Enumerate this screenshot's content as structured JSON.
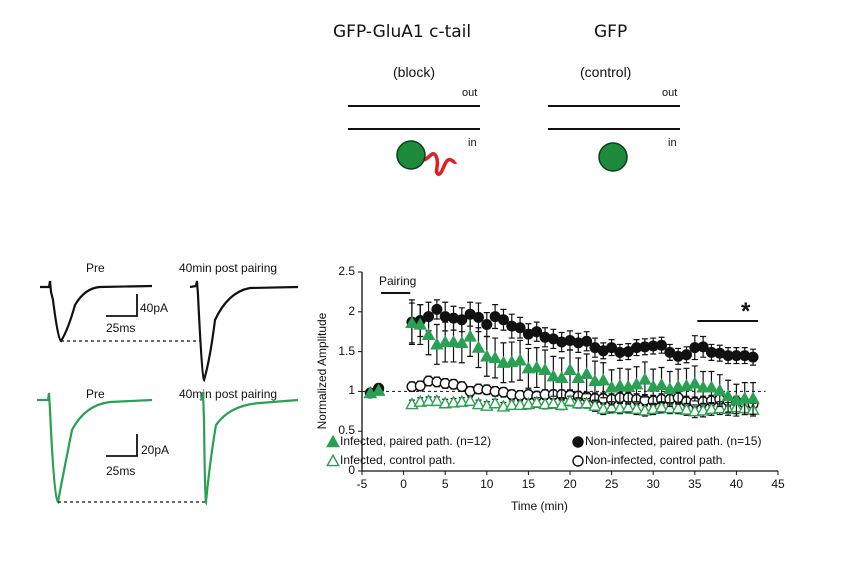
{
  "diagram": {
    "left": {
      "title": "GFP-GluA1 c-tail",
      "subtitle": "(block)",
      "out_label": "out",
      "in_label": "in"
    },
    "right": {
      "title": "GFP",
      "subtitle": "(control)",
      "out_label": "out",
      "in_label": "in"
    },
    "colors": {
      "gfp": "#1e8a3c",
      "ctail": "#e02020"
    }
  },
  "traces": {
    "black": {
      "pre_label": "Pre",
      "post_label": "40min post pairing",
      "scale_y": "40pA",
      "scale_x": "25ms",
      "color": "#111111"
    },
    "green": {
      "pre_label": "Pre",
      "post_label": "40min post pairing",
      "scale_y": "20pA",
      "scale_x": "25ms",
      "color": "#2aa052"
    }
  },
  "chart_data": {
    "type": "scatter",
    "xlabel": "Time (min)",
    "ylabel": "Normalized Amplitude",
    "xlim": [
      -5,
      45
    ],
    "ylim": [
      0,
      2.5
    ],
    "xticks": [
      "-5",
      "0",
      "5",
      "10",
      "15",
      "20",
      "25",
      "30",
      "35",
      "40",
      "45"
    ],
    "yticks": [
      "0",
      "0.5",
      "1",
      "1.5",
      "2",
      "2.5"
    ],
    "reference_line": 1,
    "annotations": {
      "pairing": "Pairing",
      "significance": "*"
    },
    "legend_placement": "bottom-left",
    "x": [
      -4,
      -3,
      1,
      2,
      3,
      4,
      5,
      6,
      7,
      8,
      9,
      10,
      11,
      12,
      13,
      14,
      15,
      16,
      17,
      18,
      19,
      20,
      21,
      22,
      23,
      24,
      25,
      26,
      27,
      28,
      29,
      30,
      31,
      32,
      33,
      34,
      35,
      36,
      37,
      38,
      39,
      40,
      41,
      42
    ],
    "series": [
      {
        "name": "Non-infected, control path.",
        "marker": "open-circle",
        "color": "#111111",
        "values": [
          0.98,
          1.03,
          1.06,
          1.07,
          1.13,
          1.12,
          1.1,
          1.09,
          1.06,
          1.0,
          1.03,
          1.02,
          1.0,
          0.99,
          0.96,
          0.95,
          0.96,
          0.94,
          0.96,
          0.96,
          0.96,
          0.95,
          0.94,
          0.93,
          0.91,
          0.91,
          0.9,
          0.92,
          0.92,
          0.9,
          0.89,
          0.88,
          0.9,
          0.9,
          0.92,
          0.87,
          0.86,
          0.87,
          0.88,
          0.9,
          0.88,
          0.87,
          0.85,
          0.84
        ],
        "errors": [
          0.03,
          0.03,
          0.06,
          0.06,
          0.06,
          0.06,
          0.06,
          0.06,
          0.06,
          0.06,
          0.06,
          0.06,
          0.06,
          0.06,
          0.06,
          0.06,
          0.06,
          0.06,
          0.06,
          0.06,
          0.06,
          0.06,
          0.06,
          0.06,
          0.07,
          0.07,
          0.07,
          0.07,
          0.07,
          0.07,
          0.07,
          0.07,
          0.07,
          0.07,
          0.07,
          0.07,
          0.07,
          0.07,
          0.07,
          0.07,
          0.07,
          0.07,
          0.07,
          0.07
        ]
      },
      {
        "name": "Infected, control path.",
        "marker": "open-triangle",
        "color": "#2aa052",
        "values": [
          0.98,
          1.01,
          0.84,
          0.87,
          0.88,
          0.88,
          0.85,
          0.86,
          0.87,
          0.88,
          0.84,
          0.82,
          0.85,
          0.81,
          0.83,
          0.83,
          0.84,
          0.86,
          0.84,
          0.85,
          0.83,
          0.88,
          0.85,
          0.85,
          0.82,
          0.78,
          0.8,
          0.79,
          0.8,
          0.78,
          0.76,
          0.78,
          0.8,
          0.79,
          0.79,
          0.77,
          0.75,
          0.76,
          0.78,
          0.79,
          0.78,
          0.8,
          0.79,
          0.77
        ],
        "errors": [
          0.03,
          0.03,
          0.05,
          0.05,
          0.05,
          0.05,
          0.05,
          0.05,
          0.05,
          0.05,
          0.05,
          0.05,
          0.05,
          0.05,
          0.05,
          0.05,
          0.06,
          0.06,
          0.06,
          0.06,
          0.06,
          0.06,
          0.06,
          0.06,
          0.07,
          0.07,
          0.07,
          0.07,
          0.07,
          0.07,
          0.07,
          0.07,
          0.07,
          0.07,
          0.07,
          0.07,
          0.08,
          0.08,
          0.08,
          0.08,
          0.08,
          0.08,
          0.08,
          0.08
        ]
      },
      {
        "name": "Non-infected, paired path. (n=15)",
        "marker": "filled-circle",
        "color": "#111111",
        "values": [
          0.98,
          1.04,
          1.87,
          1.89,
          1.94,
          2.03,
          1.94,
          1.92,
          1.9,
          1.97,
          1.93,
          1.84,
          1.94,
          1.9,
          1.82,
          1.8,
          1.72,
          1.75,
          1.68,
          1.66,
          1.62,
          1.64,
          1.61,
          1.63,
          1.55,
          1.51,
          1.55,
          1.49,
          1.5,
          1.55,
          1.56,
          1.57,
          1.58,
          1.49,
          1.44,
          1.46,
          1.55,
          1.56,
          1.49,
          1.48,
          1.45,
          1.45,
          1.45,
          1.43
        ],
        "errors": [
          0.03,
          0.03,
          0.28,
          0.2,
          0.18,
          0.12,
          0.18,
          0.15,
          0.15,
          0.15,
          0.18,
          0.15,
          0.15,
          0.13,
          0.15,
          0.13,
          0.13,
          0.12,
          0.12,
          0.12,
          0.12,
          0.12,
          0.12,
          0.12,
          0.12,
          0.1,
          0.1,
          0.1,
          0.1,
          0.1,
          0.1,
          0.1,
          0.1,
          0.1,
          0.1,
          0.1,
          0.15,
          0.13,
          0.1,
          0.1,
          0.1,
          0.1,
          0.1,
          0.1
        ]
      },
      {
        "name": "Infected, paired path. (n=12)",
        "marker": "filled-triangle",
        "color": "#2aa052",
        "values": [
          0.98,
          1.01,
          1.86,
          1.84,
          1.71,
          1.59,
          1.62,
          1.62,
          1.61,
          1.69,
          1.55,
          1.44,
          1.42,
          1.36,
          1.37,
          1.39,
          1.29,
          1.3,
          1.27,
          1.19,
          1.17,
          1.27,
          1.17,
          1.22,
          1.13,
          1.14,
          1.05,
          1.07,
          1.06,
          1.09,
          1.15,
          1.06,
          1.08,
          1.03,
          1.06,
          1.07,
          1.1,
          1.05,
          1.05,
          1.01,
          0.94,
          0.89,
          0.91,
          0.91
        ],
        "errors": [
          0.03,
          0.03,
          0.25,
          0.25,
          0.25,
          0.25,
          0.25,
          0.25,
          0.25,
          0.25,
          0.25,
          0.25,
          0.25,
          0.25,
          0.25,
          0.25,
          0.25,
          0.25,
          0.25,
          0.25,
          0.25,
          0.25,
          0.25,
          0.25,
          0.25,
          0.22,
          0.22,
          0.22,
          0.22,
          0.22,
          0.22,
          0.22,
          0.22,
          0.22,
          0.22,
          0.22,
          0.22,
          0.2,
          0.2,
          0.2,
          0.2,
          0.2,
          0.2,
          0.2
        ]
      }
    ]
  }
}
